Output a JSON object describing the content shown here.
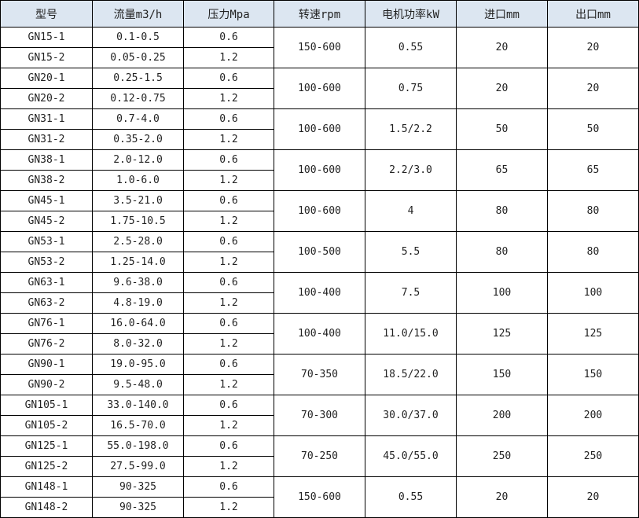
{
  "headers": [
    "型号",
    "流量m3/h",
    "压力Mpa",
    "转速rpm",
    "电机功率kW",
    "进口mm",
    "出口mm"
  ],
  "groups": [
    {
      "rows": [
        {
          "model": "GN15-1",
          "flow": "0.1-0.5",
          "pressure": "0.6"
        },
        {
          "model": "GN15-2",
          "flow": "0.05-0.25",
          "pressure": "1.2"
        }
      ],
      "speed": "150-600",
      "power": "0.55",
      "inlet": "20",
      "outlet": "20"
    },
    {
      "rows": [
        {
          "model": "GN20-1",
          "flow": "0.25-1.5",
          "pressure": "0.6"
        },
        {
          "model": "GN20-2",
          "flow": "0.12-0.75",
          "pressure": "1.2"
        }
      ],
      "speed": "100-600",
      "power": "0.75",
      "inlet": "20",
      "outlet": "20"
    },
    {
      "rows": [
        {
          "model": "GN31-1",
          "flow": "0.7-4.0",
          "pressure": "0.6"
        },
        {
          "model": "GN31-2",
          "flow": "0.35-2.0",
          "pressure": "1.2"
        }
      ],
      "speed": "100-600",
      "power": "1.5/2.2",
      "inlet": "50",
      "outlet": "50"
    },
    {
      "rows": [
        {
          "model": "GN38-1",
          "flow": "2.0-12.0",
          "pressure": "0.6"
        },
        {
          "model": "GN38-2",
          "flow": "1.0-6.0",
          "pressure": "1.2"
        }
      ],
      "speed": "100-600",
      "power": "2.2/3.0",
      "inlet": "65",
      "outlet": "65"
    },
    {
      "rows": [
        {
          "model": "GN45-1",
          "flow": "3.5-21.0",
          "pressure": "0.6"
        },
        {
          "model": "GN45-2",
          "flow": "1.75-10.5",
          "pressure": "1.2"
        }
      ],
      "speed": "100-600",
      "power": "4",
      "inlet": "80",
      "outlet": "80"
    },
    {
      "rows": [
        {
          "model": "GN53-1",
          "flow": "2.5-28.0",
          "pressure": "0.6"
        },
        {
          "model": "GN53-2",
          "flow": "1.25-14.0",
          "pressure": "1.2"
        }
      ],
      "speed": "100-500",
      "power": "5.5",
      "inlet": "80",
      "outlet": "80"
    },
    {
      "rows": [
        {
          "model": "GN63-1",
          "flow": "9.6-38.0",
          "pressure": "0.6"
        },
        {
          "model": "GN63-2",
          "flow": "4.8-19.0",
          "pressure": "1.2"
        }
      ],
      "speed": "100-400",
      "power": "7.5",
      "inlet": "100",
      "outlet": "100"
    },
    {
      "rows": [
        {
          "model": "GN76-1",
          "flow": "16.0-64.0",
          "pressure": "0.6"
        },
        {
          "model": "GN76-2",
          "flow": "8.0-32.0",
          "pressure": "1.2"
        }
      ],
      "speed": "100-400",
      "power": "11.0/15.0",
      "inlet": "125",
      "outlet": "125"
    },
    {
      "rows": [
        {
          "model": "GN90-1",
          "flow": "19.0-95.0",
          "pressure": "0.6"
        },
        {
          "model": "GN90-2",
          "flow": "9.5-48.0",
          "pressure": "1.2"
        }
      ],
      "speed": "70-350",
      "power": "18.5/22.0",
      "inlet": "150",
      "outlet": "150"
    },
    {
      "rows": [
        {
          "model": "GN105-1",
          "flow": "33.0-140.0",
          "pressure": "0.6"
        },
        {
          "model": "GN105-2",
          "flow": "16.5-70.0",
          "pressure": "1.2"
        }
      ],
      "speed": "70-300",
      "power": "30.0/37.0",
      "inlet": "200",
      "outlet": "200"
    },
    {
      "rows": [
        {
          "model": "GN125-1",
          "flow": "55.0-198.0",
          "pressure": "0.6"
        },
        {
          "model": "GN125-2",
          "flow": "27.5-99.0",
          "pressure": "1.2"
        }
      ],
      "speed": "70-250",
      "power": "45.0/55.0",
      "inlet": "250",
      "outlet": "250"
    },
    {
      "rows": [
        {
          "model": "GN148-1",
          "flow": "90-325",
          "pressure": "0.6"
        },
        {
          "model": "GN148-2",
          "flow": "90-325",
          "pressure": "1.2"
        }
      ],
      "speed": "150-600",
      "power": "0.55",
      "inlet": "20",
      "outlet": "20"
    }
  ]
}
